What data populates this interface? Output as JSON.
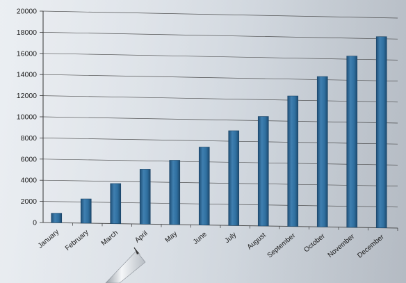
{
  "chart_data": {
    "type": "bar",
    "title": "",
    "xlabel": "",
    "ylabel": "",
    "categories": [
      "January",
      "February",
      "March",
      "April",
      "May",
      "June",
      "July",
      "August",
      "September",
      "October",
      "November",
      "December"
    ],
    "values": [
      900,
      2300,
      3800,
      5200,
      6100,
      7400,
      9000,
      10400,
      12400,
      14300,
      16300,
      18200
    ],
    "ylim": [
      0,
      20000
    ],
    "yticks": [
      "0",
      "2000",
      "4000",
      "6000",
      "8000",
      "10000",
      "12000",
      "14000",
      "16000",
      "18000",
      "20000"
    ],
    "grid": true,
    "legend": "none",
    "colors": {
      "bar": "#2f6f9f",
      "bar_dark": "#1f4f76",
      "bar_light": "#4d8cbc"
    }
  },
  "pen": {
    "icon": "pen-icon"
  }
}
